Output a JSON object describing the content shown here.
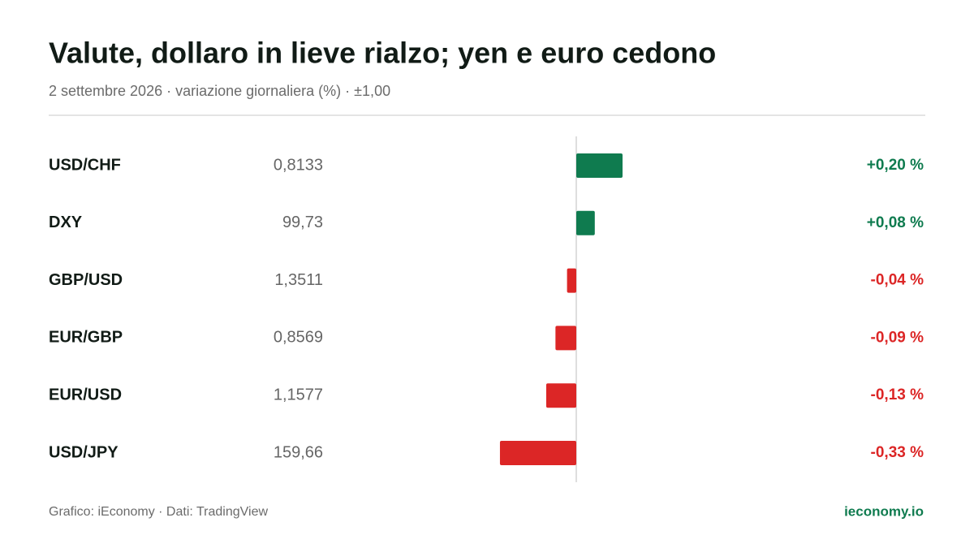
{
  "chart_data": {
    "type": "bar",
    "title": "Valute, dollaro in lieve rialzo; yen e euro cedono",
    "subtitle": "2 settembre 2026 · variazione giornaliera (%) · ±1,00",
    "categories": [
      "USD/CHF",
      "DXY",
      "GBP/USD",
      "EUR/GBP",
      "EUR/USD",
      "USD/JPY"
    ],
    "quotes": [
      "0,8133",
      "99,73",
      "1,3511",
      "0,8569",
      "1,1577",
      "159,66"
    ],
    "values": [
      0.2,
      0.08,
      -0.04,
      -0.09,
      -0.13,
      -0.33
    ],
    "value_labels": [
      "+0,20 %",
      "+0,08 %",
      "-0,04 %",
      "-0,09 %",
      "-0,13 %",
      "-0,33 %"
    ],
    "xlim": [
      -1,
      1
    ],
    "colors": {
      "positive": "#0f7b4f",
      "negative": "#dc2626"
    },
    "source": "Grafico: iEconomy · Dati: TradingView",
    "brand": "ieconomy.io"
  }
}
